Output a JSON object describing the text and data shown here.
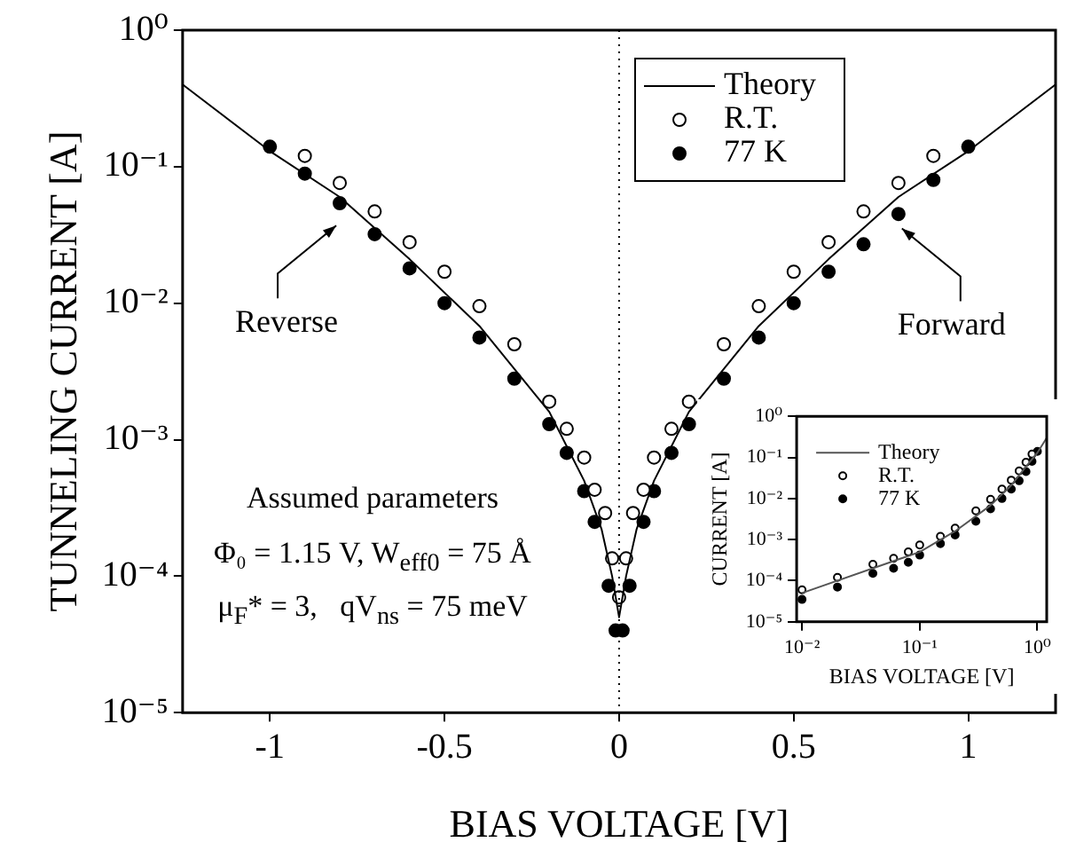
{
  "chart_data": [
    {
      "type": "scatter",
      "xlabel": "BIAS VOLTAGE [V]",
      "ylabel": "TUNNELING CURRENT [A]",
      "log": "y",
      "xlim": [
        -1.25,
        1.25
      ],
      "xticks": [
        -1,
        -0.5,
        0,
        0.5,
        1
      ],
      "ylim": [
        1e-05,
        1
      ],
      "yticks": [
        {
          "value": 1e-05,
          "label": "10⁻⁵"
        },
        {
          "value": 0.0001,
          "label": "10⁻⁴"
        },
        {
          "value": 0.001,
          "label": "10⁻³"
        },
        {
          "value": 0.01,
          "label": "10⁻²"
        },
        {
          "value": 0.1,
          "label": "10⁻¹"
        },
        {
          "value": 1,
          "label": "10⁰"
        }
      ],
      "grid": false,
      "legend": "top right",
      "series": [
        {
          "name": "Theory",
          "type": "line",
          "marker": "none",
          "line_style": "solid",
          "color": "#000000",
          "x": [
            -1.25,
            -1,
            -0.8,
            -0.6,
            -0.4,
            -0.2,
            -0.1,
            -0.05,
            -0.02,
            0,
            0.02,
            0.05,
            0.1,
            0.2,
            0.4,
            0.6,
            0.8,
            1,
            1.25
          ],
          "values": [
            0.4,
            0.13,
            0.06,
            0.021,
            0.0068,
            0.0016,
            0.0005,
            0.00022,
            0.0001,
            5e-05,
            0.0001,
            0.00022,
            0.0005,
            0.0016,
            0.0068,
            0.021,
            0.06,
            0.13,
            0.4
          ]
        },
        {
          "name": "R.T.",
          "type": "scatter",
          "marker": "circle",
          "color": "#000000",
          "x": [
            -0.9,
            -0.8,
            -0.7,
            -0.6,
            -0.5,
            -0.4,
            -0.3,
            -0.2,
            -0.15,
            -0.1,
            -0.07,
            -0.04,
            -0.02,
            0,
            0.02,
            0.04,
            0.07,
            0.1,
            0.15,
            0.2,
            0.3,
            0.4,
            0.5,
            0.6,
            0.7,
            0.8,
            0.9
          ],
          "values": [
            0.12,
            0.076,
            0.047,
            0.028,
            0.017,
            0.0095,
            0.005,
            0.0019,
            0.0012,
            0.00074,
            0.00043,
            0.00029,
            0.000135,
            7e-05,
            0.000135,
            0.00029,
            0.00043,
            0.00074,
            0.0012,
            0.0019,
            0.005,
            0.0095,
            0.017,
            0.028,
            0.047,
            0.076,
            0.12
          ]
        },
        {
          "name": "77 K",
          "type": "scatter",
          "marker": "circle",
          "color": "#000000",
          "x": [
            -1,
            -0.9,
            -0.8,
            -0.7,
            -0.6,
            -0.5,
            -0.4,
            -0.3,
            -0.2,
            -0.15,
            -0.1,
            -0.07,
            -0.03,
            -0.01,
            0.01,
            0.03,
            0.07,
            0.1,
            0.15,
            0.2,
            0.3,
            0.4,
            0.5,
            0.6,
            0.7,
            0.8,
            0.9,
            1
          ],
          "values": [
            0.14,
            0.089,
            0.054,
            0.032,
            0.018,
            0.01,
            0.0056,
            0.0028,
            0.0013,
            0.0008,
            0.00042,
            0.00025,
            8.5e-05,
            4e-05,
            4e-05,
            8.5e-05,
            0.00025,
            0.00042,
            0.0008,
            0.0013,
            0.0028,
            0.0056,
            0.01,
            0.017,
            0.027,
            0.045,
            0.08,
            0.14
          ]
        }
      ],
      "ref_lines": [
        {
          "axis": "x",
          "value": 0,
          "color": "#000000",
          "line_style": "dotted"
        }
      ],
      "annotations": [
        {
          "text": "Reverse",
          "x": -0.81,
          "y": 0.043
        },
        {
          "text": "Forward",
          "x": 0.81,
          "y": 0.041
        },
        "Assumed parameters",
        "Φ₀ = 1.15 V, W$_{eff0}$ = 75 Å",
        "μ$_{F}$* = 3,   qV$_{ns}$ = 75 meV"
      ]
    },
    {
      "type": "scatter",
      "xlabel": "BIAS VOLTAGE [V]",
      "ylabel": "CURRENT [A]",
      "log": "xy",
      "xlim": [
        0.009,
        1.2
      ],
      "xticks": [
        {
          "value": 0.01,
          "label": "10⁻²"
        },
        {
          "value": 0.1,
          "label": "10⁻¹"
        },
        {
          "value": 1,
          "label": "10⁰"
        }
      ],
      "ylim": [
        1e-05,
        1
      ],
      "yticks": [
        {
          "value": 1e-05,
          "label": "10⁻⁵"
        },
        {
          "value": 0.0001,
          "label": "10⁻⁴"
        },
        {
          "value": 0.001,
          "label": "10⁻³"
        },
        {
          "value": 0.01,
          "label": "10⁻²"
        },
        {
          "value": 0.1,
          "label": "10⁻¹"
        },
        {
          "value": 1,
          "label": "10⁰"
        }
      ],
      "grid": false,
      "legend": "top left",
      "series": [
        {
          "name": "Theory",
          "type": "line",
          "marker": "none",
          "line_style": "solid",
          "color": "#555555",
          "x": [
            0.01,
            0.1,
            0.2,
            0.4,
            0.6,
            0.8,
            1,
            1.2
          ],
          "values": [
            5e-05,
            0.0005,
            0.0016,
            0.0068,
            0.021,
            0.06,
            0.13,
            0.3
          ]
        },
        {
          "name": "R.T.",
          "type": "scatter",
          "marker": "circle",
          "color": "#000000",
          "x": [
            0.01,
            0.02,
            0.04,
            0.06,
            0.08,
            0.1,
            0.15,
            0.2,
            0.3,
            0.4,
            0.5,
            0.6,
            0.7,
            0.8,
            0.9
          ],
          "values": [
            6e-05,
            0.00012,
            0.00025,
            0.00035,
            0.0005,
            0.00074,
            0.0012,
            0.0019,
            0.005,
            0.0095,
            0.017,
            0.028,
            0.047,
            0.076,
            0.12
          ]
        },
        {
          "name": "77 K",
          "type": "scatter",
          "marker": "circle",
          "color": "#000000",
          "x": [
            0.01,
            0.02,
            0.04,
            0.06,
            0.08,
            0.1,
            0.15,
            0.2,
            0.3,
            0.4,
            0.5,
            0.6,
            0.7,
            0.8,
            0.9,
            1
          ],
          "values": [
            3.5e-05,
            7e-05,
            0.00015,
            0.0002,
            0.00028,
            0.00042,
            0.0008,
            0.0013,
            0.0028,
            0.0056,
            0.01,
            0.017,
            0.027,
            0.045,
            0.08,
            0.14
          ]
        }
      ]
    }
  ]
}
